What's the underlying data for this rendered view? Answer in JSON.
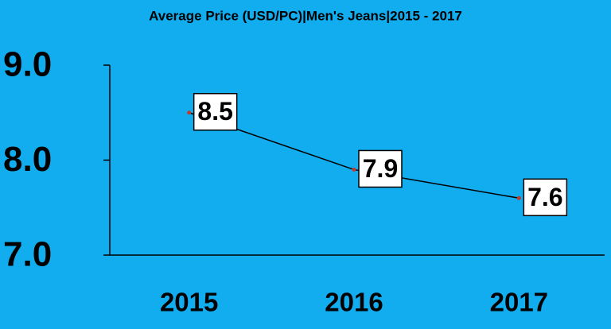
{
  "chart_data": {
    "type": "line",
    "title": "Average Price (USD/PC)|Men's Jeans|2015 - 2017",
    "categories": [
      "2015",
      "2016",
      "2017"
    ],
    "values": [
      8.5,
      7.9,
      7.6
    ],
    "color": "#000000",
    "marker_color": "#c0392b",
    "ylim": [
      7,
      9
    ],
    "yticks": [
      {
        "value": 7,
        "label": "7.0"
      },
      {
        "value": 8,
        "label": "8.0"
      },
      {
        "value": 9,
        "label": "9.0"
      }
    ]
  }
}
